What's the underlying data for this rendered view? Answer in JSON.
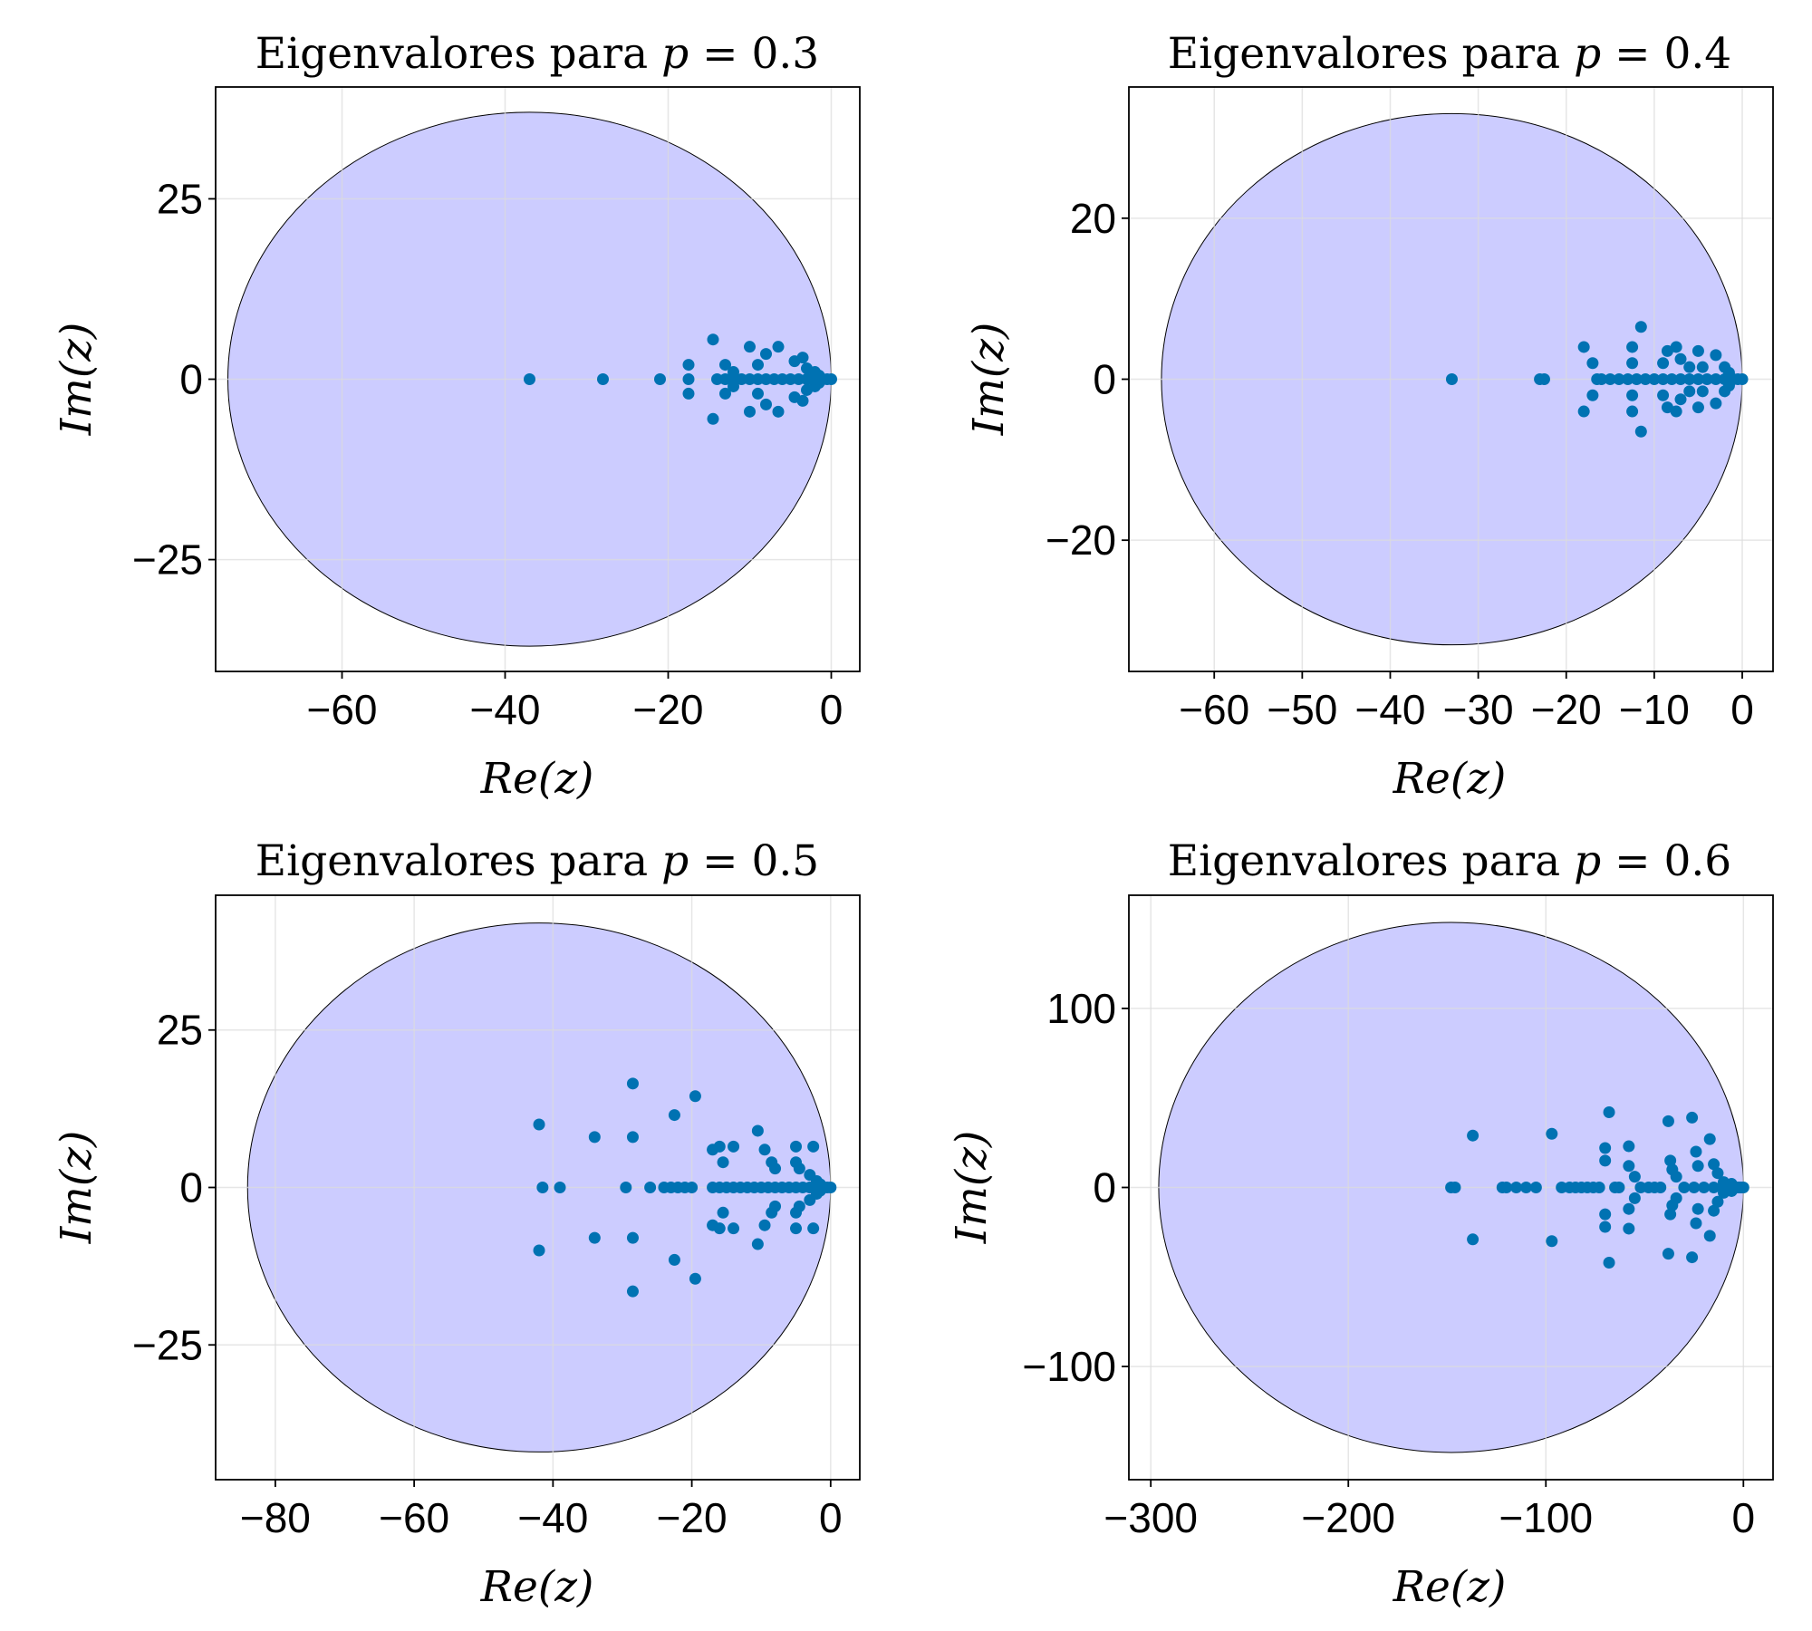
{
  "chart_data": [
    {
      "type": "scatter",
      "title": "Eigenvalores para p = 0.3",
      "title_parts": {
        "prefix": "Eigenvalores para ",
        "var": "p",
        "eq": " = ",
        "value": "0.3"
      },
      "xlabel": "Re(z)",
      "ylabel": "Im(z)",
      "xlim": [
        -75.5,
        3.5
      ],
      "ylim": [
        -40.5,
        40.5
      ],
      "xticks": [
        -60,
        -40,
        -20,
        0
      ],
      "yticks": [
        -25,
        0,
        25
      ],
      "grid": true,
      "disk": {
        "center": [
          -37,
          0
        ],
        "radius": 37,
        "fill": "#ccccff"
      },
      "point_color": "#0072b2",
      "points": [
        [
          -37,
          0
        ],
        [
          -28,
          0
        ],
        [
          -21,
          0
        ],
        [
          -17.5,
          0
        ],
        [
          -14.5,
          5.5
        ],
        [
          -14.5,
          -5.5
        ],
        [
          -17.5,
          2
        ],
        [
          -17.5,
          -2
        ],
        [
          -13,
          2
        ],
        [
          -13,
          -2
        ],
        [
          -12,
          1
        ],
        [
          -12,
          -1
        ],
        [
          -10,
          4.5
        ],
        [
          -10,
          -4.5
        ],
        [
          -9,
          2
        ],
        [
          -9,
          -2
        ],
        [
          -8,
          3.5
        ],
        [
          -8,
          -3.5
        ],
        [
          -6.5,
          4.5
        ],
        [
          -6.5,
          -4.5
        ],
        [
          -4.5,
          2.5
        ],
        [
          -4.5,
          -2.5
        ],
        [
          -3.5,
          3
        ],
        [
          -3.5,
          -3
        ],
        [
          -3,
          1.5
        ],
        [
          -3,
          -1.5
        ],
        [
          -2,
          1
        ],
        [
          -2,
          -1
        ],
        [
          -1.5,
          0.5
        ],
        [
          -1.5,
          -0.5
        ],
        [
          -14,
          0
        ],
        [
          -13,
          0
        ],
        [
          -12,
          0
        ],
        [
          -11,
          0
        ],
        [
          -10,
          0
        ],
        [
          -9,
          0
        ],
        [
          -8,
          0
        ],
        [
          -7,
          0
        ],
        [
          -6,
          0
        ],
        [
          -5,
          0
        ],
        [
          -4,
          0
        ],
        [
          -3,
          0
        ],
        [
          -2.5,
          0
        ],
        [
          -2,
          0
        ],
        [
          -1.5,
          0
        ],
        [
          -1,
          0
        ],
        [
          -0.5,
          0
        ],
        [
          0,
          0
        ]
      ]
    },
    {
      "type": "scatter",
      "title": "Eigenvalores para p = 0.4",
      "title_parts": {
        "prefix": "Eigenvalores para ",
        "var": "p",
        "eq": " = ",
        "value": "0.4"
      },
      "xlabel": "Re(z)",
      "ylabel": "Im(z)",
      "xlim": [
        -69.7,
        3.5
      ],
      "ylim": [
        -36.3,
        36.3
      ],
      "xticks": [
        -60,
        -50,
        -40,
        -30,
        -20,
        -10,
        0
      ],
      "yticks": [
        -20,
        0,
        20
      ],
      "grid": true,
      "disk": {
        "center": [
          -33,
          0
        ],
        "radius": 33,
        "fill": "#ccccff"
      },
      "point_color": "#0072b2",
      "points": [
        [
          -33,
          0
        ],
        [
          -23,
          0
        ],
        [
          -22.5,
          0
        ],
        [
          -18,
          4
        ],
        [
          -18,
          -4
        ],
        [
          -17,
          2
        ],
        [
          -17,
          -2
        ],
        [
          -16.5,
          0
        ],
        [
          -16,
          0
        ],
        [
          -15,
          0
        ],
        [
          -12.5,
          4
        ],
        [
          -12.5,
          -4
        ],
        [
          -12.5,
          2
        ],
        [
          -12.5,
          -2
        ],
        [
          -11.5,
          6.5
        ],
        [
          -11.5,
          -6.5
        ],
        [
          -9,
          2
        ],
        [
          -9,
          -2
        ],
        [
          -8.5,
          3.5
        ],
        [
          -8.5,
          -3.5
        ],
        [
          -7.5,
          4
        ],
        [
          -7.5,
          -4
        ],
        [
          -7,
          2.5
        ],
        [
          -7,
          -2.5
        ],
        [
          -6,
          1.5
        ],
        [
          -6,
          -1.5
        ],
        [
          -5,
          3.5
        ],
        [
          -5,
          -3.5
        ],
        [
          -4.5,
          1.5
        ],
        [
          -4.5,
          -1.5
        ],
        [
          -3,
          3
        ],
        [
          -3,
          -3
        ],
        [
          -2,
          1.5
        ],
        [
          -2,
          -1.5
        ],
        [
          -1.5,
          0.8
        ],
        [
          -1.5,
          -0.8
        ],
        [
          -14,
          0
        ],
        [
          -13,
          0
        ],
        [
          -12,
          0
        ],
        [
          -11,
          0
        ],
        [
          -10,
          0
        ],
        [
          -9,
          0
        ],
        [
          -8,
          0
        ],
        [
          -7,
          0
        ],
        [
          -6,
          0
        ],
        [
          -5,
          0
        ],
        [
          -4,
          0
        ],
        [
          -3,
          0
        ],
        [
          -2,
          0
        ],
        [
          -1.5,
          0
        ],
        [
          -1,
          0
        ],
        [
          -0.5,
          0
        ],
        [
          0,
          0
        ]
      ]
    },
    {
      "type": "scatter",
      "title": "Eigenvalores para p = 0.5",
      "title_parts": {
        "prefix": "Eigenvalores para ",
        "var": "p",
        "eq": " = ",
        "value": "0.5"
      },
      "xlabel": "Re(z)",
      "ylabel": "Im(z)",
      "xlim": [
        -88.6,
        4.2
      ],
      "ylim": [
        -46.4,
        46.4
      ],
      "xticks": [
        -80,
        -60,
        -40,
        -20,
        0
      ],
      "yticks": [
        -25,
        0,
        25
      ],
      "grid": true,
      "disk": {
        "center": [
          -42,
          0
        ],
        "radius": 42,
        "fill": "#ccccff"
      },
      "point_color": "#0072b2",
      "points": [
        [
          -42,
          10
        ],
        [
          -42,
          -10
        ],
        [
          -41.5,
          0
        ],
        [
          -39,
          0
        ],
        [
          -34,
          8
        ],
        [
          -34,
          -8
        ],
        [
          -29.5,
          0
        ],
        [
          -28.5,
          16.5
        ],
        [
          -28.5,
          -16.5
        ],
        [
          -28.5,
          8
        ],
        [
          -28.5,
          -8
        ],
        [
          -26,
          0
        ],
        [
          -24,
          0
        ],
        [
          -23,
          0
        ],
        [
          -22.5,
          11.5
        ],
        [
          -22.5,
          -11.5
        ],
        [
          -22,
          0
        ],
        [
          -21,
          0
        ],
        [
          -20,
          0
        ],
        [
          -19.5,
          14.5
        ],
        [
          -19.5,
          -14.5
        ],
        [
          -17,
          6
        ],
        [
          -17,
          -6
        ],
        [
          -16,
          6.5
        ],
        [
          -16,
          -6.5
        ],
        [
          -15.5,
          4
        ],
        [
          -15.5,
          -4
        ],
        [
          -14,
          6.5
        ],
        [
          -14,
          -6.5
        ],
        [
          -10.5,
          9
        ],
        [
          -10.5,
          -9
        ],
        [
          -9.5,
          6
        ],
        [
          -9.5,
          -6
        ],
        [
          -8.5,
          4
        ],
        [
          -8.5,
          -4
        ],
        [
          -8,
          3
        ],
        [
          -8,
          -3
        ],
        [
          -5,
          6.5
        ],
        [
          -5,
          -6.5
        ],
        [
          -5,
          4
        ],
        [
          -5,
          -4
        ],
        [
          -4.5,
          3
        ],
        [
          -4.5,
          -3
        ],
        [
          -3,
          2
        ],
        [
          -3,
          -2
        ],
        [
          -2.5,
          6.5
        ],
        [
          -2.5,
          -6.5
        ],
        [
          -2,
          1
        ],
        [
          -2,
          -1
        ],
        [
          -1.5,
          0.5
        ],
        [
          -1.5,
          -0.5
        ],
        [
          -17,
          0
        ],
        [
          -16,
          0
        ],
        [
          -15,
          0
        ],
        [
          -14,
          0
        ],
        [
          -13,
          0
        ],
        [
          -12,
          0
        ],
        [
          -11,
          0
        ],
        [
          -10,
          0
        ],
        [
          -9,
          0
        ],
        [
          -8,
          0
        ],
        [
          -7,
          0
        ],
        [
          -6,
          0
        ],
        [
          -5,
          0
        ],
        [
          -4,
          0
        ],
        [
          -3,
          0
        ],
        [
          -2,
          0
        ],
        [
          -1,
          0
        ],
        [
          -0.5,
          0
        ],
        [
          0,
          0
        ]
      ]
    },
    {
      "type": "scatter",
      "title": "Eigenvalores para p = 0.6",
      "title_parts": {
        "prefix": "Eigenvalores para ",
        "var": "p",
        "eq": " = ",
        "value": "0.6"
      },
      "xlabel": "Re(z)",
      "ylabel": "Im(z)",
      "xlim": [
        -311.1,
        15
      ],
      "ylim": [
        -163.2,
        163.2
      ],
      "xticks": [
        -300,
        -200,
        -100,
        0
      ],
      "yticks": [
        -100,
        0,
        100
      ],
      "grid": true,
      "disk": {
        "center": [
          -148,
          0
        ],
        "radius": 148,
        "fill": "#ccccff"
      },
      "point_color": "#0072b2",
      "points": [
        [
          -148,
          0
        ],
        [
          -146,
          0
        ],
        [
          -137,
          29
        ],
        [
          -137,
          -29
        ],
        [
          -122,
          0
        ],
        [
          -120,
          0
        ],
        [
          -115,
          0
        ],
        [
          -110,
          0
        ],
        [
          -105,
          0
        ],
        [
          -97,
          30
        ],
        [
          -97,
          -30
        ],
        [
          -92,
          0
        ],
        [
          -88,
          0
        ],
        [
          -85,
          0
        ],
        [
          -82,
          0
        ],
        [
          -79,
          0
        ],
        [
          -76,
          0
        ],
        [
          -73,
          0
        ],
        [
          -70,
          22
        ],
        [
          -70,
          -22
        ],
        [
          -70,
          15
        ],
        [
          -70,
          -15
        ],
        [
          -68,
          42
        ],
        [
          -68,
          -42
        ],
        [
          -65,
          0
        ],
        [
          -63,
          0
        ],
        [
          -58,
          23
        ],
        [
          -58,
          -23
        ],
        [
          -58,
          12
        ],
        [
          -58,
          -12
        ],
        [
          -55,
          6
        ],
        [
          -55,
          -6
        ],
        [
          -52,
          0
        ],
        [
          -48,
          0
        ],
        [
          -45,
          0
        ],
        [
          -42,
          0
        ],
        [
          -38,
          37
        ],
        [
          -38,
          -37
        ],
        [
          -37,
          15
        ],
        [
          -37,
          -15
        ],
        [
          -36,
          10
        ],
        [
          -36,
          -10
        ],
        [
          -34,
          6
        ],
        [
          -34,
          -6
        ],
        [
          -30,
          0
        ],
        [
          -26,
          39
        ],
        [
          -26,
          -39
        ],
        [
          -24,
          20
        ],
        [
          -24,
          -20
        ],
        [
          -23,
          12
        ],
        [
          -23,
          -12
        ],
        [
          -17,
          27
        ],
        [
          -17,
          -27
        ],
        [
          -15,
          13
        ],
        [
          -15,
          -13
        ],
        [
          -13,
          8
        ],
        [
          -13,
          -8
        ],
        [
          -10,
          3
        ],
        [
          -10,
          -3
        ],
        [
          -6,
          2
        ],
        [
          -6,
          -2
        ],
        [
          -25,
          0
        ],
        [
          -20,
          0
        ],
        [
          -15,
          0
        ],
        [
          -10,
          0
        ],
        [
          -7,
          0
        ],
        [
          -5,
          0
        ],
        [
          -3,
          0
        ],
        [
          -2,
          0
        ],
        [
          -1,
          0
        ],
        [
          0,
          0
        ]
      ]
    }
  ]
}
